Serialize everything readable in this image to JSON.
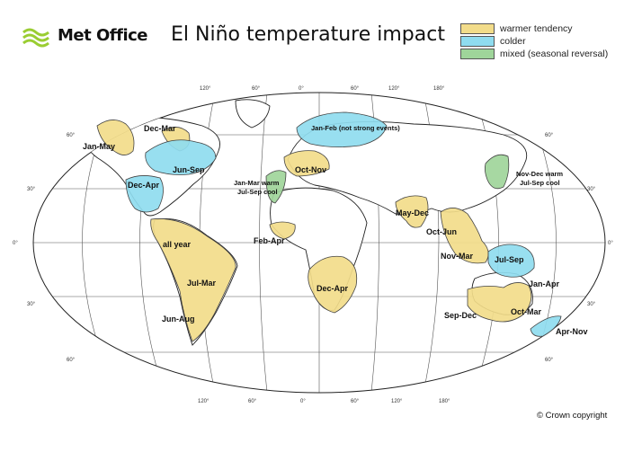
{
  "header": {
    "logo_text": "Met Office",
    "title": "El Niño temperature impact"
  },
  "legend": [
    {
      "label": "warmer tendency",
      "color": "#f2dc8a"
    },
    {
      "label": "colder",
      "color": "#8fdcef"
    },
    {
      "label": "mixed (seasonal reversal)",
      "color": "#9fd59a"
    }
  ],
  "graticule": {
    "top_ticks": [
      "120°",
      "60°",
      "0°",
      "60°",
      "120°",
      "180°"
    ],
    "bottom_ticks": [
      "120°",
      "60°",
      "0°",
      "60°",
      "120°",
      "180°"
    ],
    "left_ticks": [
      "60°",
      "30°",
      "0°",
      "30°",
      "60°"
    ],
    "right_ticks": [
      "60°",
      "30°",
      "0°",
      "30°",
      "60°"
    ]
  },
  "regions": {
    "jan_may": "Jan-May",
    "dec_mar": "Dec-Mar",
    "jun_sep": "Jun-Sep",
    "dec_apr_na": "Dec-Apr",
    "jan_feb": "Jan-Feb (not strong events)",
    "oct_nov": "Oct-Nov",
    "jan_mar_warm": "Jan-Mar warm",
    "jul_sep_cool": "Jul-Sep cool",
    "nov_dec_warm": "Nov-Dec warm",
    "jul_sep_cool_asia": "Jul-Sep cool",
    "may_dec": "May-Dec",
    "oct_jun": "Oct-Jun",
    "nov_mar": "Nov-Mar",
    "jul_sep_aus": "Jul-Sep",
    "jan_apr": "Jan-Apr",
    "oct_mar": "Oct-Mar",
    "apr_nov": "Apr-Nov",
    "sep_dec": "Sep-Dec",
    "feb_apr": "Feb-Apr",
    "dec_apr_africa": "Dec-Apr",
    "all_year": "all year",
    "jul_mar": "Jul-Mar",
    "jun_aug": "Jun-Aug"
  },
  "footer": {
    "copyright": "© Crown copyright"
  }
}
